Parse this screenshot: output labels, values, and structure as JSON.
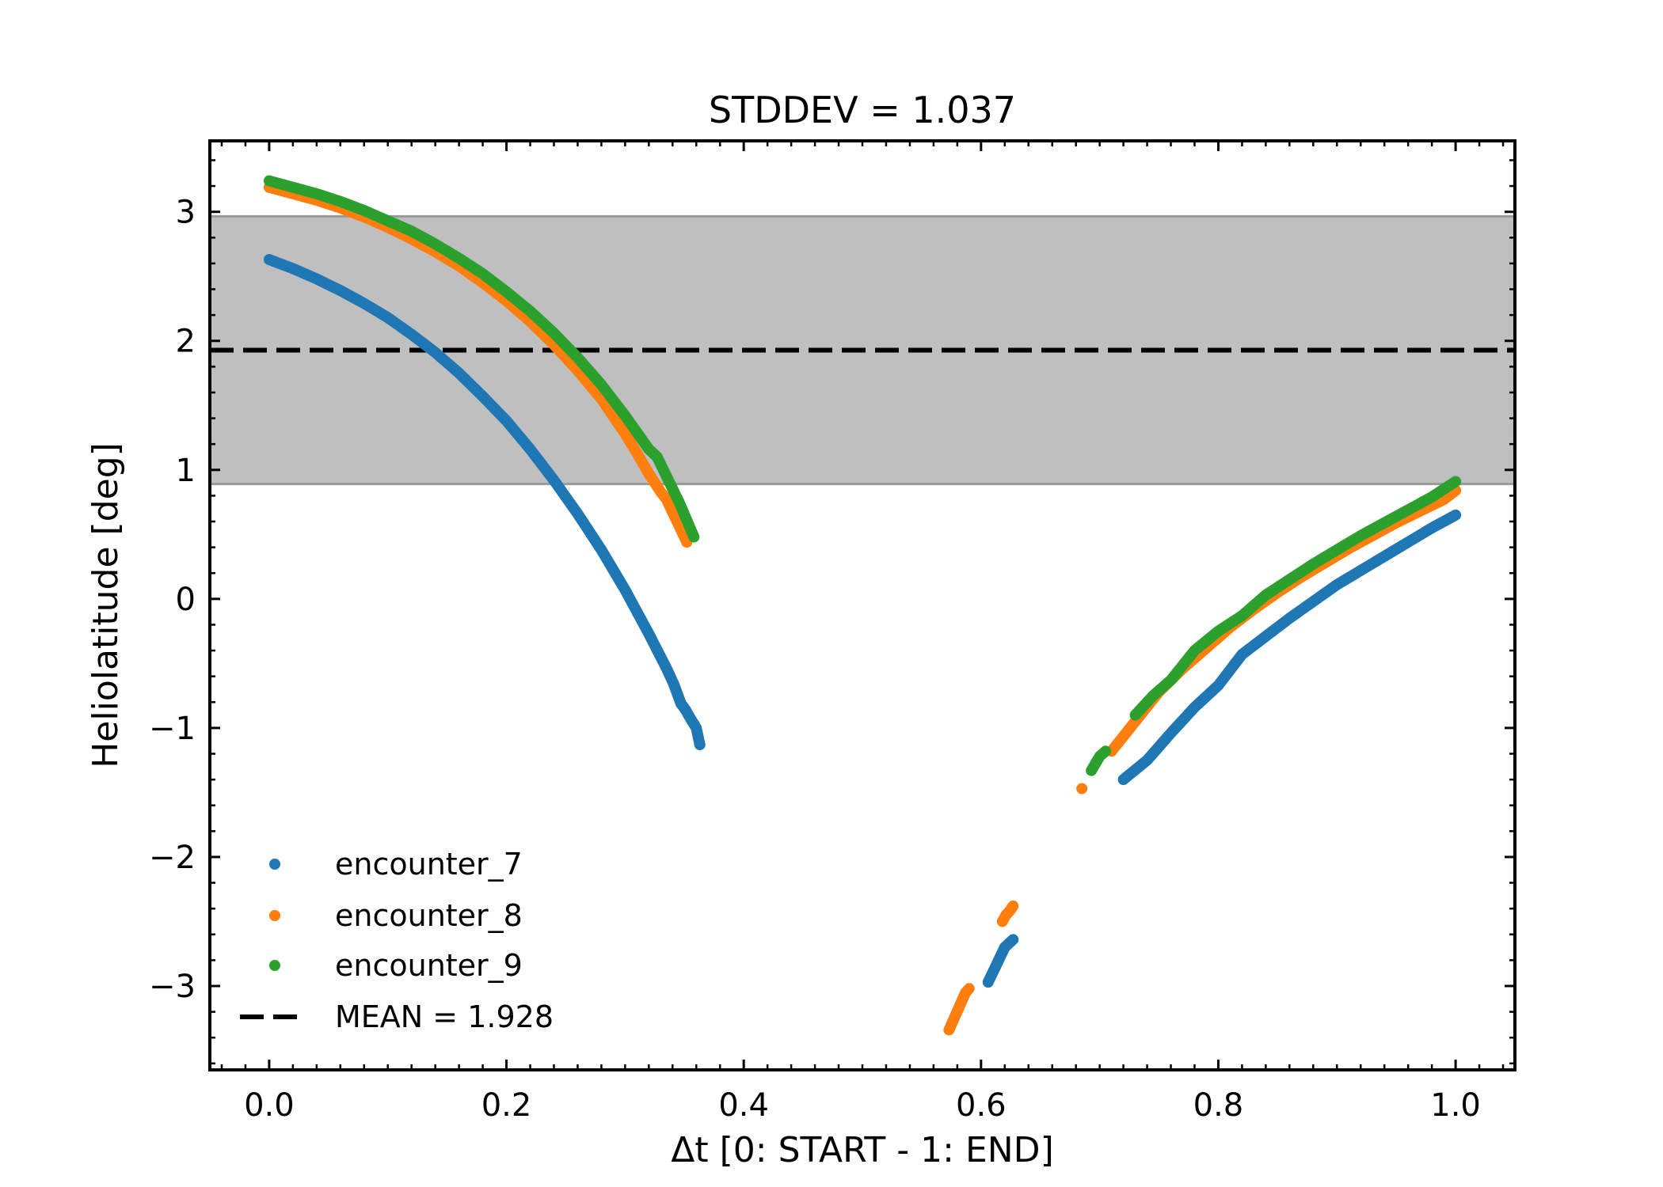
{
  "chart_data": {
    "type": "scatter",
    "title": "STDDEV = 1.037",
    "xlabel": "Δt [0: START - 1: END]",
    "ylabel": "Heliolatitude [deg]",
    "xlim": [
      -0.05,
      1.05
    ],
    "ylim": [
      -3.65,
      3.55
    ],
    "x_ticks": [
      0.0,
      0.2,
      0.4,
      0.6,
      0.8,
      1.0
    ],
    "x_tick_labels": [
      "0.0",
      "0.2",
      "0.4",
      "0.6",
      "0.8",
      "1.0"
    ],
    "y_ticks": [
      -3,
      -2,
      -1,
      0,
      1,
      2,
      3
    ],
    "y_tick_labels": [
      "−3",
      "−2",
      "−1",
      "0",
      "1",
      "2",
      "3"
    ],
    "grid": false,
    "legend_position": "lower-left",
    "mean": {
      "label": "MEAN = 1.928",
      "value": 1.928,
      "color": "#000000"
    },
    "std_band": {
      "low": 0.891,
      "high": 2.965,
      "color": "#bfbfbf"
    },
    "series": [
      {
        "name": "encounter_7",
        "color": "#1f77b4",
        "points": [
          [
            0.0,
            2.63
          ],
          [
            0.02,
            2.56
          ],
          [
            0.04,
            2.48
          ],
          [
            0.06,
            2.39
          ],
          [
            0.08,
            2.29
          ],
          [
            0.1,
            2.18
          ],
          [
            0.12,
            2.05
          ],
          [
            0.14,
            1.91
          ],
          [
            0.16,
            1.75
          ],
          [
            0.18,
            1.57
          ],
          [
            0.2,
            1.38
          ],
          [
            0.22,
            1.16
          ],
          [
            0.24,
            0.92
          ],
          [
            0.26,
            0.66
          ],
          [
            0.28,
            0.38
          ],
          [
            0.3,
            0.07
          ],
          [
            0.31,
            -0.1
          ],
          [
            0.32,
            -0.27
          ],
          [
            0.33,
            -0.45
          ],
          [
            0.335,
            -0.54
          ],
          [
            0.341,
            -0.66
          ],
          [
            0.347,
            -0.81
          ],
          [
            0.351,
            -0.86
          ],
          [
            0.354,
            -0.91
          ],
          [
            0.36,
            -1.0
          ],
          [
            0.363,
            -1.13
          ],
          [
            0.606,
            -2.97
          ],
          [
            0.62,
            -2.7
          ],
          [
            0.627,
            -2.64
          ],
          [
            0.72,
            -1.4
          ],
          [
            0.74,
            -1.25
          ],
          [
            0.76,
            -1.04
          ],
          [
            0.78,
            -0.84
          ],
          [
            0.8,
            -0.67
          ],
          [
            0.82,
            -0.43
          ],
          [
            0.84,
            -0.29
          ],
          [
            0.86,
            -0.15
          ],
          [
            0.88,
            -0.02
          ],
          [
            0.9,
            0.11
          ],
          [
            0.92,
            0.22
          ],
          [
            0.94,
            0.33
          ],
          [
            0.96,
            0.44
          ],
          [
            0.98,
            0.55
          ],
          [
            1.0,
            0.65
          ]
        ]
      },
      {
        "name": "encounter_8",
        "color": "#ff7f0e",
        "points": [
          [
            0.0,
            3.19
          ],
          [
            0.02,
            3.14
          ],
          [
            0.04,
            3.09
          ],
          [
            0.06,
            3.03
          ],
          [
            0.08,
            2.96
          ],
          [
            0.1,
            2.88
          ],
          [
            0.12,
            2.79
          ],
          [
            0.14,
            2.69
          ],
          [
            0.16,
            2.58
          ],
          [
            0.18,
            2.45
          ],
          [
            0.2,
            2.31
          ],
          [
            0.22,
            2.15
          ],
          [
            0.24,
            1.97
          ],
          [
            0.26,
            1.77
          ],
          [
            0.28,
            1.55
          ],
          [
            0.3,
            1.28
          ],
          [
            0.31,
            1.13
          ],
          [
            0.32,
            0.97
          ],
          [
            0.33,
            0.83
          ],
          [
            0.335,
            0.77
          ],
          [
            0.352,
            0.44
          ],
          [
            0.573,
            -3.34
          ],
          [
            0.587,
            -3.05
          ],
          [
            0.59,
            -3.02
          ],
          [
            0.618,
            -2.5
          ],
          [
            0.621,
            -2.45
          ],
          [
            0.624,
            -2.42
          ],
          [
            0.627,
            -2.38
          ],
          [
            0.685,
            -1.47
          ],
          [
            0.71,
            -1.18
          ],
          [
            0.73,
            -0.95
          ],
          [
            0.75,
            -0.72
          ],
          [
            0.77,
            -0.54
          ],
          [
            0.79,
            -0.38
          ],
          [
            0.81,
            -0.22
          ],
          [
            0.83,
            -0.08
          ],
          [
            0.85,
            0.05
          ],
          [
            0.87,
            0.17
          ],
          [
            0.89,
            0.28
          ],
          [
            0.91,
            0.39
          ],
          [
            0.93,
            0.49
          ],
          [
            0.95,
            0.59
          ],
          [
            0.97,
            0.68
          ],
          [
            0.99,
            0.77
          ],
          [
            1.0,
            0.84
          ]
        ]
      },
      {
        "name": "encounter_9",
        "color": "#2ca02c",
        "points": [
          [
            0.0,
            3.24
          ],
          [
            0.02,
            3.19
          ],
          [
            0.04,
            3.14
          ],
          [
            0.06,
            3.08
          ],
          [
            0.08,
            3.01
          ],
          [
            0.1,
            2.93
          ],
          [
            0.12,
            2.85
          ],
          [
            0.14,
            2.75
          ],
          [
            0.16,
            2.64
          ],
          [
            0.18,
            2.52
          ],
          [
            0.2,
            2.38
          ],
          [
            0.22,
            2.23
          ],
          [
            0.24,
            2.06
          ],
          [
            0.26,
            1.87
          ],
          [
            0.28,
            1.66
          ],
          [
            0.3,
            1.42
          ],
          [
            0.31,
            1.29
          ],
          [
            0.32,
            1.16
          ],
          [
            0.327,
            1.1
          ],
          [
            0.346,
            0.74
          ],
          [
            0.358,
            0.48
          ],
          [
            0.693,
            -1.33
          ],
          [
            0.7,
            -1.22
          ],
          [
            0.705,
            -1.18
          ],
          [
            0.73,
            -0.9
          ],
          [
            0.745,
            -0.75
          ],
          [
            0.76,
            -0.63
          ],
          [
            0.78,
            -0.4
          ],
          [
            0.8,
            -0.25
          ],
          [
            0.82,
            -0.13
          ],
          [
            0.84,
            0.03
          ],
          [
            0.86,
            0.15
          ],
          [
            0.88,
            0.27
          ],
          [
            0.9,
            0.38
          ],
          [
            0.92,
            0.49
          ],
          [
            0.94,
            0.59
          ],
          [
            0.96,
            0.69
          ],
          [
            0.98,
            0.79
          ],
          [
            1.0,
            0.91
          ]
        ]
      }
    ]
  }
}
